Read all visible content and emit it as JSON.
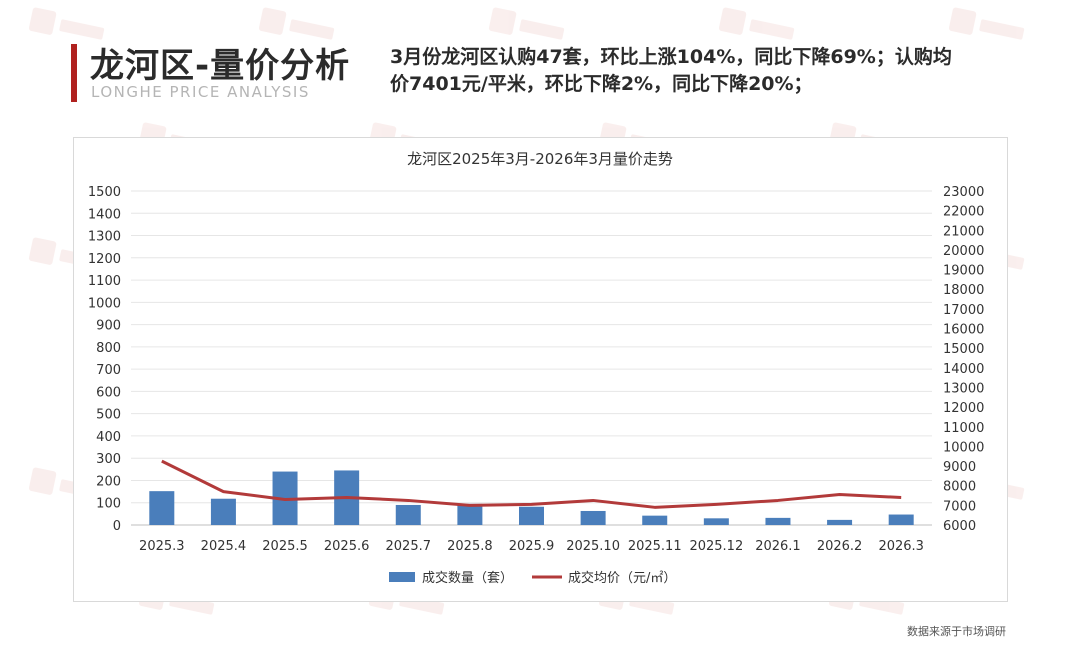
{
  "header": {
    "title": "龙河区-量价分析",
    "subtitle": "LONGHE PRICE ANALYSIS",
    "summary_line1": "3月份龙河区认购47套，环比上涨104%，同比下降69%；认购均",
    "summary_line2": "价7401元/平米，环比下降2%，同比下降20%；"
  },
  "footer": {
    "source": "数据来源于市场调研"
  },
  "colors": {
    "accent": "#b0211f",
    "bar": "#4a7ebb",
    "line": "#b23a3a"
  },
  "chart_data": {
    "type": "bar",
    "title": "龙河区2025年3月-2026年3月量价走势",
    "categories": [
      "2025.3",
      "2025.4",
      "2025.5",
      "2025.6",
      "2025.7",
      "2025.8",
      "2025.9",
      "2025.10",
      "2025.11",
      "2025.12",
      "2026.1",
      "2026.2",
      "2026.3"
    ],
    "series": [
      {
        "name": "成交数量（套）",
        "type": "bar",
        "axis": "left",
        "values": [
          152,
          118,
          240,
          245,
          90,
          95,
          82,
          63,
          42,
          30,
          32,
          23,
          47
        ]
      },
      {
        "name": "成交均价（元/㎡）",
        "type": "line",
        "axis": "right",
        "values": [
          9250,
          7700,
          7300,
          7400,
          7250,
          7000,
          7050,
          7250,
          6900,
          7050,
          7250,
          7550,
          7401
        ]
      }
    ],
    "y_left": {
      "min": 0,
      "max": 1500,
      "step": 100
    },
    "y_right": {
      "min": 6000,
      "max": 23000,
      "step": 1000
    },
    "grid": true,
    "legend_position": "bottom"
  }
}
